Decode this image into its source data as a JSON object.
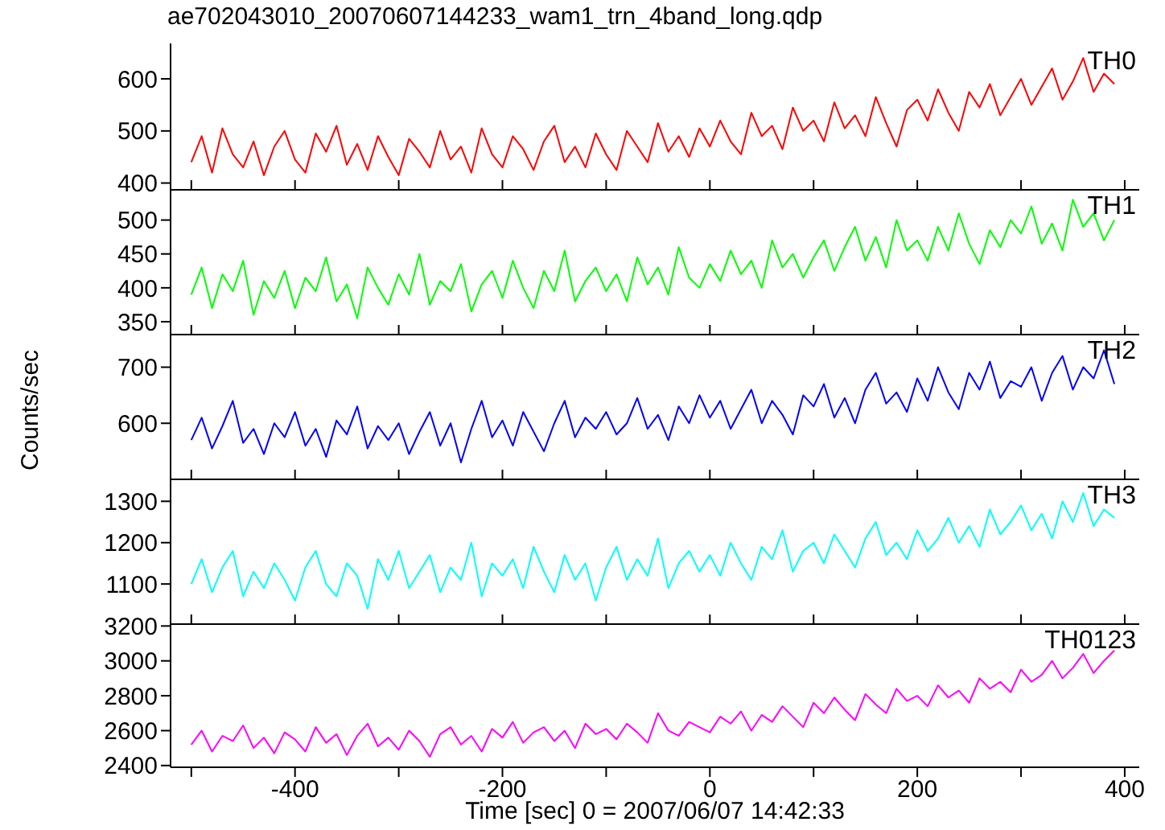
{
  "chart_data": [
    {
      "type": "line",
      "title": "ae702043010_20070607144233_wam1_trn_4band_long.qdp",
      "tick_labels": "y",
      "xlim": [
        -520,
        414
      ],
      "xticks": [
        {
          "value": -500,
          "label": null
        },
        {
          "value": -400,
          "label": null
        },
        {
          "value": -300,
          "label": null
        },
        {
          "value": -200,
          "label": null
        },
        {
          "value": -100,
          "label": null
        },
        {
          "value": 0,
          "label": null
        },
        {
          "value": 100,
          "label": null
        },
        {
          "value": 200,
          "label": null
        },
        {
          "value": 300,
          "label": null
        },
        {
          "value": 400,
          "label": null
        }
      ],
      "ylim": [
        387,
        668
      ],
      "yticks": [
        400,
        500,
        600
      ],
      "x": [
        -500,
        -490,
        -480,
        -470,
        -460,
        -450,
        -440,
        -430,
        -420,
        -410,
        -400,
        -390,
        -380,
        -370,
        -360,
        -350,
        -340,
        -330,
        -320,
        -310,
        -300,
        -290,
        -280,
        -270,
        -260,
        -250,
        -240,
        -230,
        -220,
        -210,
        -200,
        -190,
        -180,
        -170,
        -160,
        -150,
        -140,
        -130,
        -120,
        -110,
        -100,
        -90,
        -80,
        -70,
        -60,
        -50,
        -40,
        -30,
        -20,
        -10,
        0,
        10,
        20,
        30,
        40,
        50,
        60,
        70,
        80,
        90,
        100,
        110,
        120,
        130,
        140,
        150,
        160,
        170,
        180,
        190,
        200,
        210,
        220,
        230,
        240,
        250,
        260,
        270,
        280,
        290,
        300,
        310,
        320,
        330,
        340,
        350,
        360,
        370,
        380,
        390
      ],
      "series": [
        {
          "name": "TH0",
          "color": "#ff0000",
          "values": [
            440,
            490,
            420,
            505,
            455,
            430,
            480,
            415,
            470,
            500,
            445,
            420,
            495,
            460,
            510,
            435,
            475,
            425,
            490,
            450,
            415,
            485,
            460,
            430,
            500,
            445,
            470,
            420,
            505,
            455,
            430,
            490,
            465,
            425,
            480,
            510,
            440,
            470,
            430,
            495,
            455,
            425,
            500,
            470,
            440,
            515,
            460,
            490,
            450,
            505,
            470,
            520,
            480,
            455,
            535,
            490,
            510,
            465,
            545,
            500,
            520,
            480,
            555,
            505,
            530,
            490,
            565,
            515,
            470,
            540,
            560,
            520,
            580,
            535,
            500,
            575,
            545,
            590,
            530,
            565,
            600,
            550,
            585,
            620,
            560,
            595,
            640,
            575,
            610,
            590
          ]
        }
      ]
    },
    {
      "type": "line",
      "tick_labels": "y",
      "xlim": [
        -520,
        414
      ],
      "xticks": [
        {
          "value": -500,
          "label": null
        },
        {
          "value": -400,
          "label": null
        },
        {
          "value": -300,
          "label": null
        },
        {
          "value": -200,
          "label": null
        },
        {
          "value": -100,
          "label": null
        },
        {
          "value": 0,
          "label": null
        },
        {
          "value": 100,
          "label": null
        },
        {
          "value": 200,
          "label": null
        },
        {
          "value": 300,
          "label": null
        },
        {
          "value": 400,
          "label": null
        }
      ],
      "ylim": [
        331,
        547
      ],
      "yticks": [
        350,
        400,
        450,
        500
      ],
      "x": [
        -500,
        -490,
        -480,
        -470,
        -460,
        -450,
        -440,
        -430,
        -420,
        -410,
        -400,
        -390,
        -380,
        -370,
        -360,
        -350,
        -340,
        -330,
        -320,
        -310,
        -300,
        -290,
        -280,
        -270,
        -260,
        -250,
        -240,
        -230,
        -220,
        -210,
        -200,
        -190,
        -180,
        -170,
        -160,
        -150,
        -140,
        -130,
        -120,
        -110,
        -100,
        -90,
        -80,
        -70,
        -60,
        -50,
        -40,
        -30,
        -20,
        -10,
        0,
        10,
        20,
        30,
        40,
        50,
        60,
        70,
        80,
        90,
        100,
        110,
        120,
        130,
        140,
        150,
        160,
        170,
        180,
        190,
        200,
        210,
        220,
        230,
        240,
        250,
        260,
        270,
        280,
        290,
        300,
        310,
        320,
        330,
        340,
        350,
        360,
        370,
        380,
        390
      ],
      "series": [
        {
          "name": "TH1",
          "color": "#00ff00",
          "values": [
            390,
            430,
            370,
            420,
            395,
            440,
            360,
            410,
            385,
            425,
            370,
            415,
            395,
            445,
            380,
            405,
            355,
            430,
            400,
            375,
            420,
            390,
            450,
            375,
            410,
            395,
            435,
            365,
            405,
            425,
            385,
            440,
            400,
            370,
            425,
            395,
            455,
            380,
            410,
            430,
            395,
            420,
            380,
            445,
            405,
            430,
            390,
            460,
            415,
            400,
            435,
            410,
            455,
            420,
            440,
            400,
            470,
            430,
            450,
            415,
            445,
            470,
            425,
            460,
            490,
            440,
            475,
            430,
            500,
            455,
            470,
            440,
            490,
            455,
            510,
            465,
            435,
            485,
            460,
            500,
            480,
            520,
            465,
            495,
            455,
            530,
            490,
            510,
            470,
            500
          ]
        }
      ]
    },
    {
      "type": "line",
      "tick_labels": "y",
      "ylabel": "Counts/sec",
      "xlim": [
        -520,
        414
      ],
      "xticks": [
        {
          "value": -500,
          "label": null
        },
        {
          "value": -400,
          "label": null
        },
        {
          "value": -300,
          "label": null
        },
        {
          "value": -200,
          "label": null
        },
        {
          "value": -100,
          "label": null
        },
        {
          "value": 0,
          "label": null
        },
        {
          "value": 100,
          "label": null
        },
        {
          "value": 200,
          "label": null
        },
        {
          "value": 300,
          "label": null
        },
        {
          "value": 400,
          "label": null
        }
      ],
      "ylim": [
        500,
        761
      ],
      "yticks": [
        600,
        700
      ],
      "x": [
        -500,
        -490,
        -480,
        -470,
        -460,
        -450,
        -440,
        -430,
        -420,
        -410,
        -400,
        -390,
        -380,
        -370,
        -360,
        -350,
        -340,
        -330,
        -320,
        -310,
        -300,
        -290,
        -280,
        -270,
        -260,
        -250,
        -240,
        -230,
        -220,
        -210,
        -200,
        -190,
        -180,
        -170,
        -160,
        -150,
        -140,
        -130,
        -120,
        -110,
        -100,
        -90,
        -80,
        -70,
        -60,
        -50,
        -40,
        -30,
        -20,
        -10,
        0,
        10,
        20,
        30,
        40,
        50,
        60,
        70,
        80,
        90,
        100,
        110,
        120,
        130,
        140,
        150,
        160,
        170,
        180,
        190,
        200,
        210,
        220,
        230,
        240,
        250,
        260,
        270,
        280,
        290,
        300,
        310,
        320,
        330,
        340,
        350,
        360,
        370,
        380,
        390
      ],
      "series": [
        {
          "name": "TH2",
          "color": "#0000ff",
          "values": [
            570,
            610,
            555,
            595,
            640,
            565,
            590,
            545,
            600,
            575,
            620,
            560,
            590,
            540,
            605,
            580,
            630,
            555,
            595,
            570,
            600,
            545,
            585,
            620,
            560,
            600,
            530,
            590,
            640,
            575,
            605,
            560,
            620,
            585,
            550,
            600,
            640,
            575,
            610,
            590,
            620,
            580,
            600,
            645,
            590,
            615,
            570,
            630,
            600,
            650,
            610,
            640,
            590,
            625,
            660,
            600,
            640,
            615,
            580,
            650,
            630,
            670,
            610,
            645,
            600,
            660,
            690,
            635,
            655,
            620,
            680,
            640,
            700,
            655,
            625,
            690,
            660,
            710,
            645,
            675,
            665,
            700,
            640,
            690,
            720,
            660,
            700,
            680,
            730,
            670
          ]
        }
      ]
    },
    {
      "type": "line",
      "tick_labels": "y",
      "xlim": [
        -520,
        414
      ],
      "xticks": [
        {
          "value": -500,
          "label": null
        },
        {
          "value": -400,
          "label": null
        },
        {
          "value": -300,
          "label": null
        },
        {
          "value": -200,
          "label": null
        },
        {
          "value": -100,
          "label": null
        },
        {
          "value": 0,
          "label": null
        },
        {
          "value": 100,
          "label": null
        },
        {
          "value": 200,
          "label": null
        },
        {
          "value": 300,
          "label": null
        },
        {
          "value": 400,
          "label": null
        }
      ],
      "ylim": [
        1003,
        1357
      ],
      "yticks": [
        1100,
        1200,
        1300
      ],
      "x": [
        -500,
        -490,
        -480,
        -470,
        -460,
        -450,
        -440,
        -430,
        -420,
        -410,
        -400,
        -390,
        -380,
        -370,
        -360,
        -350,
        -340,
        -330,
        -320,
        -310,
        -300,
        -290,
        -280,
        -270,
        -260,
        -250,
        -240,
        -230,
        -220,
        -210,
        -200,
        -190,
        -180,
        -170,
        -160,
        -150,
        -140,
        -130,
        -120,
        -110,
        -100,
        -90,
        -80,
        -70,
        -60,
        -50,
        -40,
        -30,
        -20,
        -10,
        0,
        10,
        20,
        30,
        40,
        50,
        60,
        70,
        80,
        90,
        100,
        110,
        120,
        130,
        140,
        150,
        160,
        170,
        180,
        190,
        200,
        210,
        220,
        230,
        240,
        250,
        260,
        270,
        280,
        290,
        300,
        310,
        320,
        330,
        340,
        350,
        360,
        370,
        380,
        390
      ],
      "series": [
        {
          "name": "TH3",
          "color": "#00ffff",
          "values": [
            1100,
            1160,
            1080,
            1140,
            1180,
            1070,
            1130,
            1090,
            1150,
            1110,
            1060,
            1140,
            1180,
            1100,
            1070,
            1150,
            1120,
            1040,
            1160,
            1110,
            1180,
            1090,
            1130,
            1170,
            1080,
            1140,
            1110,
            1200,
            1070,
            1150,
            1120,
            1160,
            1090,
            1190,
            1130,
            1080,
            1170,
            1110,
            1150,
            1060,
            1140,
            1190,
            1110,
            1160,
            1120,
            1210,
            1090,
            1150,
            1180,
            1130,
            1170,
            1120,
            1200,
            1150,
            1110,
            1190,
            1160,
            1230,
            1130,
            1180,
            1200,
            1150,
            1220,
            1180,
            1140,
            1210,
            1250,
            1170,
            1200,
            1160,
            1230,
            1180,
            1210,
            1260,
            1200,
            1240,
            1190,
            1280,
            1220,
            1250,
            1290,
            1230,
            1270,
            1210,
            1300,
            1250,
            1320,
            1240,
            1280,
            1260
          ]
        }
      ]
    },
    {
      "type": "line",
      "xlabel": "Time [sec] 0 = 2007/06/07 14:42:33",
      "xlim": [
        -520,
        414
      ],
      "xticks": [
        {
          "value": -500,
          "label": null
        },
        -400,
        {
          "value": -300,
          "label": null
        },
        -200,
        {
          "value": -100,
          "label": null
        },
        0,
        {
          "value": 100,
          "label": null
        },
        200,
        {
          "value": 300,
          "label": null
        },
        400
      ],
      "ylim": [
        2390,
        3220
      ],
      "yticks": [
        2400,
        2600,
        2800,
        3000,
        3200
      ],
      "x": [
        -500,
        -490,
        -480,
        -470,
        -460,
        -450,
        -440,
        -430,
        -420,
        -410,
        -400,
        -390,
        -380,
        -370,
        -360,
        -350,
        -340,
        -330,
        -320,
        -310,
        -300,
        -290,
        -280,
        -270,
        -260,
        -250,
        -240,
        -230,
        -220,
        -210,
        -200,
        -190,
        -180,
        -170,
        -160,
        -150,
        -140,
        -130,
        -120,
        -110,
        -100,
        -90,
        -80,
        -70,
        -60,
        -50,
        -40,
        -30,
        -20,
        -10,
        0,
        10,
        20,
        30,
        40,
        50,
        60,
        70,
        80,
        90,
        100,
        110,
        120,
        130,
        140,
        150,
        160,
        170,
        180,
        190,
        200,
        210,
        220,
        230,
        240,
        250,
        260,
        270,
        280,
        290,
        300,
        310,
        320,
        330,
        340,
        350,
        360,
        370,
        380,
        390
      ],
      "series": [
        {
          "name": "TH0123",
          "color": "#ff00ff",
          "values": [
            2520,
            2600,
            2480,
            2570,
            2540,
            2630,
            2500,
            2560,
            2470,
            2590,
            2550,
            2480,
            2620,
            2530,
            2580,
            2460,
            2570,
            2640,
            2510,
            2560,
            2490,
            2600,
            2540,
            2450,
            2580,
            2620,
            2520,
            2570,
            2480,
            2610,
            2560,
            2650,
            2530,
            2590,
            2620,
            2540,
            2600,
            2500,
            2640,
            2580,
            2610,
            2550,
            2640,
            2590,
            2530,
            2700,
            2600,
            2570,
            2650,
            2620,
            2590,
            2680,
            2640,
            2710,
            2600,
            2690,
            2650,
            2740,
            2680,
            2620,
            2760,
            2700,
            2790,
            2720,
            2660,
            2810,
            2750,
            2700,
            2840,
            2770,
            2800,
            2740,
            2860,
            2790,
            2830,
            2760,
            2900,
            2840,
            2880,
            2820,
            2950,
            2880,
            2920,
            3000,
            2900,
            2960,
            3040,
            2930,
            3000,
            3060
          ]
        }
      ]
    }
  ]
}
